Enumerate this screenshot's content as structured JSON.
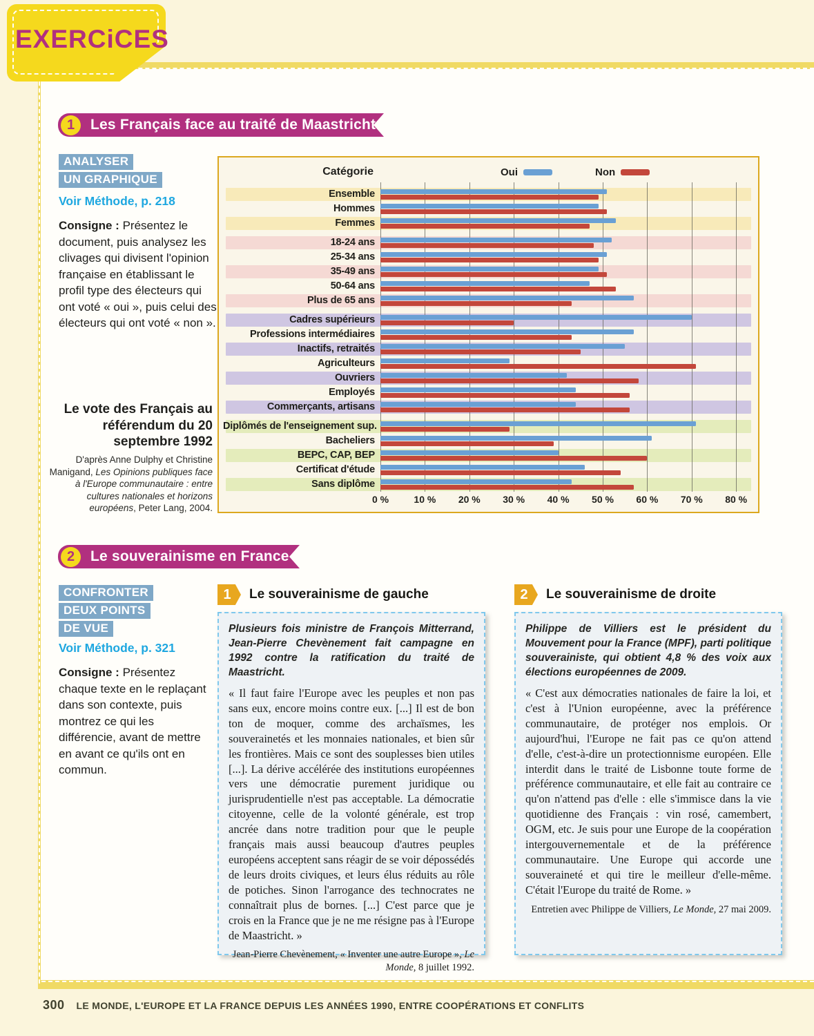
{
  "colors": {
    "magenta": "#b1307f",
    "yellow": "#f5d91d",
    "border_yellow": "#f0da64",
    "badge_blue": "#7fa8c7",
    "method_blue": "#1ea7e0",
    "doc_border": "#7fc8ec",
    "doc_number": "#e8a71f",
    "chart_border": "#dca81f"
  },
  "page": {
    "tab": "EXERCiCES",
    "footer": {
      "page_number": "300",
      "chapter": "LE MONDE, L'EUROPE ET LA FRANCE DEPUIS LES ANNÉES 1990, ENTRE COOPÉRATIONS ET CONFLITS"
    }
  },
  "exercise1": {
    "number": "1",
    "title": "Les Français face au traité de Maastricht",
    "method_badges": [
      "ANALYSER",
      "UN GRAPHIQUE"
    ],
    "method_ref": "Voir Méthode, p. 218",
    "consigne_label": "Consigne :",
    "consigne_text": " Présentez le document, puis analysez les clivages qui divisent l'opinion française en établissant le profil type des électeurs qui ont voté « oui », puis celui des électeurs qui ont voté « non ».",
    "caption_source_prefix": "D'après Anne Dulphy et Christine Manigand, ",
    "caption_source_italic": "Les Opinions publiques face à l'Europe communautaire : entre cultures nationales et horizons européens",
    "caption_source_suffix": ", Peter Lang, 2004."
  },
  "chart_data": {
    "type": "bar",
    "orientation": "horizontal",
    "title": "Le vote des Français au référendum du 20 septembre 1992",
    "column_header": "Catégorie",
    "legend": [
      {
        "name": "Oui",
        "color": "#6aa0d4"
      },
      {
        "name": "Non",
        "color": "#c3473b"
      }
    ],
    "xlim": [
      0,
      80
    ],
    "xlabel_ticks": [
      "0 %",
      "10 %",
      "20 %",
      "30 %",
      "40 %",
      "50 %",
      "60 %",
      "70 %",
      "80 %"
    ],
    "grid": true,
    "unit": "% des votes",
    "groups": [
      {
        "band_color": "#f8eab9",
        "rows": [
          {
            "label": "Ensemble",
            "oui": 51,
            "non": 49
          },
          {
            "label": "Hommes",
            "oui": 49,
            "non": 51
          },
          {
            "label": "Femmes",
            "oui": 53,
            "non": 47
          }
        ]
      },
      {
        "band_color": "#f5d9d4",
        "rows": [
          {
            "label": "18-24 ans",
            "oui": 52,
            "non": 48
          },
          {
            "label": "25-34 ans",
            "oui": 51,
            "non": 49
          },
          {
            "label": "35-49 ans",
            "oui": 49,
            "non": 51
          },
          {
            "label": "50-64 ans",
            "oui": 47,
            "non": 53
          },
          {
            "label": "Plus de 65 ans",
            "oui": 57,
            "non": 43
          }
        ]
      },
      {
        "band_color": "#cfc6e2",
        "rows": [
          {
            "label": "Cadres supérieurs",
            "oui": 70,
            "non": 30
          },
          {
            "label": "Professions intermédiaires",
            "oui": 57,
            "non": 43
          },
          {
            "label": "Inactifs, retraités",
            "oui": 55,
            "non": 45
          },
          {
            "label": "Agriculteurs",
            "oui": 29,
            "non": 71
          },
          {
            "label": "Ouvriers",
            "oui": 42,
            "non": 58
          },
          {
            "label": "Employés",
            "oui": 44,
            "non": 56
          },
          {
            "label": "Commerçants, artisans",
            "oui": 44,
            "non": 56
          }
        ]
      },
      {
        "band_color": "#e4ecbb",
        "rows": [
          {
            "label": "Diplômés de l'enseignement sup.",
            "oui": 71,
            "non": 29
          },
          {
            "label": "Bacheliers",
            "oui": 61,
            "non": 39
          },
          {
            "label": "BEPC, CAP, BEP",
            "oui": 40,
            "non": 60
          },
          {
            "label": "Certificat d'étude",
            "oui": 46,
            "non": 54
          },
          {
            "label": "Sans diplôme",
            "oui": 43,
            "non": 57
          }
        ]
      }
    ]
  },
  "exercise2": {
    "number": "2",
    "title": "Le souverainisme en France",
    "method_badges": [
      "CONFRONTER",
      "DEUX POINTS",
      "DE VUE"
    ],
    "method_ref": "Voir Méthode, p. 321",
    "consigne_label": "Consigne :",
    "consigne_text": " Présentez chaque texte en le replaçant dans son contexte, puis montrez ce qui les différencie, avant de mettre en avant ce qu'ils ont en commun.",
    "doc1": {
      "number": "1",
      "title": "Le souverainisme de gauche",
      "intro": "Plusieurs fois ministre de François Mitterrand, Jean-Pierre Chevènement fait campagne en 1992 contre la ratification du traité de Maastricht.",
      "quote": "« Il faut faire l'Europe avec les peuples et non pas sans eux, encore moins contre eux. [...] Il est de bon ton de moquer, comme des archaïsmes, les souverainetés et les monnaies nationales, et bien sûr les frontières. Mais ce sont des souplesses bien utiles [...]. La dérive accélérée des institutions européennes vers une démocratie purement juridique ou jurisprudentielle n'est pas acceptable. La démocratie citoyenne, celle de la volonté générale, est trop ancrée dans notre tradition pour que le peuple français mais aussi beaucoup d'autres peuples européens acceptent sans réagir de se voir dépossédés de leurs droits civiques, et leurs élus réduits au rôle de potiches. Sinon l'arrogance des technocrates ne connaîtrait plus de bornes. [...] C'est parce que je crois en la France que je ne me résigne pas à l'Europe de Maastricht. »",
      "source_prefix": "Jean-Pierre Chevènement, « Inventer une autre Europe », ",
      "source_italic": "Le Monde,",
      "source_suffix": " 8 juillet 1992."
    },
    "doc2": {
      "number": "2",
      "title": "Le souverainisme de droite",
      "intro": "Philippe de Villiers est le président du Mouvement pour la France (MPF), parti politique souverainiste, qui obtient 4,8 % des voix aux élections européennes de 2009.",
      "quote": "« C'est aux démocraties nationales de faire la loi, et c'est à l'Union européenne, avec la préférence communautaire, de protéger nos emplois. Or aujourd'hui, l'Europe ne fait pas ce qu'on attend d'elle, c'est-à-dire un protectionnisme européen. Elle interdit dans le traité de Lisbonne toute forme de préférence communautaire, et elle fait au contraire ce qu'on n'attend pas d'elle : elle s'immisce dans la vie quotidienne des Français : vin rosé, camembert, OGM, etc. Je suis pour une Europe de la coopération intergouvernementale et de la préférence communautaire. Une Europe qui accorde une souveraineté et qui tire le meilleur d'elle-même. C'était l'Europe du traité de Rome. »",
      "source_prefix": "Entretien avec Philippe de Villiers, ",
      "source_italic": "Le Monde,",
      "source_suffix": " 27 mai 2009."
    }
  }
}
